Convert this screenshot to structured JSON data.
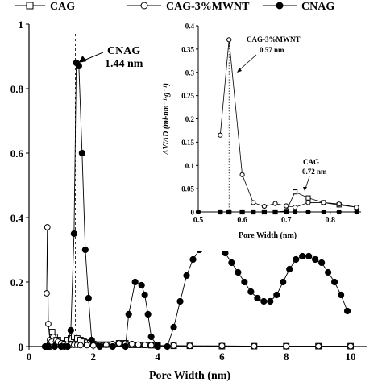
{
  "chart_data": [
    {
      "type": "line",
      "xlabel": "Pore Width (nm)",
      "ylabel": "",
      "xlim": [
        0,
        10.5
      ],
      "ylim": [
        0,
        1.0
      ],
      "xticks": [
        "0",
        "2",
        "4",
        "6",
        "8",
        "10"
      ],
      "yticks": [
        "0",
        "0.2",
        "0.4",
        "0.6",
        "0.8",
        "1"
      ],
      "legend": {
        "placement": "top",
        "entries": [
          "CAG",
          "CAG-3%MWNT",
          "CNAG"
        ]
      },
      "series": [
        {
          "name": "CAG",
          "marker": "open-square",
          "x": [
            0.55,
            0.6,
            0.65,
            0.72,
            0.8,
            0.9,
            1.0,
            1.1,
            1.2,
            1.3,
            1.4,
            1.5,
            1.6,
            1.7,
            1.8,
            1.9,
            2.0,
            2.2,
            2.4,
            2.6,
            2.8,
            3.0,
            3.2,
            3.4,
            3.6,
            3.8,
            4.0,
            4.5,
            5.0,
            6.0,
            7.0,
            8.0,
            9.0,
            10.0
          ],
          "y": [
            0.0,
            0.0,
            0.005,
            0.045,
            0.03,
            0.02,
            0.01,
            0.005,
            0.02,
            0.025,
            0.03,
            0.025,
            0.02,
            0.015,
            0.012,
            0.01,
            0.008,
            0.006,
            0.006,
            0.005,
            0.01,
            0.01,
            0.005,
            0.005,
            0.005,
            0.004,
            0.003,
            0.002,
            0.002,
            0.001,
            0.001,
            0.001,
            0.001,
            0.001
          ]
        },
        {
          "name": "CAG-3%MWNT",
          "marker": "open-circle",
          "x": [
            0.55,
            0.57,
            0.6,
            0.65,
            0.7,
            0.75,
            0.8,
            0.85,
            0.9,
            1.0,
            1.1,
            1.2,
            1.3,
            1.4,
            1.5,
            1.6,
            1.8,
            2.0,
            2.2,
            2.4,
            2.6,
            2.8,
            3.0,
            3.2,
            3.4,
            3.6,
            3.8,
            4.0,
            4.5,
            5.0,
            6.0,
            7.0,
            8.0,
            9.0,
            10.0
          ],
          "y": [
            0.165,
            0.37,
            0.07,
            0.02,
            0.015,
            0.03,
            0.02,
            0.02,
            0.015,
            0.01,
            0.008,
            0.006,
            0.005,
            0.005,
            0.005,
            0.004,
            0.004,
            0.003,
            0.004,
            0.005,
            0.008,
            0.01,
            0.01,
            0.008,
            0.006,
            0.005,
            0.004,
            0.003,
            0.003,
            0.002,
            0.002,
            0.001,
            0.001,
            0.001,
            0.001
          ]
        },
        {
          "name": "CNAG",
          "marker": "filled-circle",
          "x": [
            0.5,
            0.6,
            0.8,
            1.0,
            1.1,
            1.2,
            1.3,
            1.4,
            1.47,
            1.55,
            1.65,
            1.75,
            1.85,
            1.95,
            2.2,
            2.6,
            3.0,
            3.1,
            3.3,
            3.5,
            3.6,
            3.7,
            3.8,
            4.0,
            4.3,
            4.5,
            4.7,
            4.9,
            5.1,
            5.3,
            5.5,
            5.7,
            5.9,
            6.1,
            6.3,
            6.5,
            6.7,
            6.9,
            7.1,
            7.3,
            7.5,
            7.7,
            7.9,
            8.1,
            8.3,
            8.5,
            8.7,
            8.9,
            9.1,
            9.3,
            9.5,
            9.7,
            9.9
          ],
          "y": [
            0.0,
            0.0,
            0.0,
            0.0,
            0.0,
            0.0,
            0.05,
            0.35,
            0.88,
            0.87,
            0.6,
            0.3,
            0.15,
            0.02,
            0.0,
            0.0,
            0.0,
            0.1,
            0.2,
            0.19,
            0.16,
            0.1,
            0.03,
            0.0,
            0.0,
            0.06,
            0.14,
            0.22,
            0.27,
            0.3,
            0.32,
            0.32,
            0.31,
            0.29,
            0.26,
            0.23,
            0.2,
            0.17,
            0.15,
            0.14,
            0.14,
            0.16,
            0.2,
            0.24,
            0.27,
            0.28,
            0.28,
            0.27,
            0.26,
            0.23,
            0.2,
            0.16,
            0.11
          ]
        }
      ],
      "annotations": [
        {
          "text": "CNAG",
          "x": 1.44,
          "y": 0.88
        },
        {
          "text": "1.44 nm",
          "x": 1.44,
          "y": 0.88
        }
      ],
      "reference_line": {
        "x": 1.44,
        "style": "dashed"
      }
    },
    {
      "type": "line",
      "xlabel": "Pore Width (nm)",
      "ylabel": "ΔV/ΔD (ml·nm⁻¹·g⁻¹)",
      "xlim": [
        0.5,
        0.87
      ],
      "ylim": [
        0,
        0.4
      ],
      "xticks": [
        "0.5",
        "0.6",
        "0.7",
        "0.8"
      ],
      "yticks": [
        "0",
        "0.05",
        "0.1",
        "0.15",
        "0.2",
        "0.25",
        "0.3",
        "0.35",
        "0.4"
      ],
      "series": [
        {
          "name": "CAG",
          "marker": "open-square",
          "x": [
            0.55,
            0.57,
            0.6,
            0.625,
            0.65,
            0.675,
            0.7,
            0.72,
            0.75,
            0.785,
            0.82,
            0.86
          ],
          "y": [
            0.0,
            0.0,
            0.0,
            0.0,
            0.0,
            0.0,
            0.002,
            0.043,
            0.03,
            0.02,
            0.015,
            0.01
          ]
        },
        {
          "name": "CAG-3%MWNT",
          "marker": "open-circle",
          "x": [
            0.55,
            0.57,
            0.6,
            0.625,
            0.65,
            0.675,
            0.7,
            0.72,
            0.75,
            0.785,
            0.82,
            0.86
          ],
          "y": [
            0.165,
            0.37,
            0.08,
            0.02,
            0.012,
            0.018,
            0.013,
            0.01,
            0.02,
            0.02,
            0.017,
            0.01
          ]
        },
        {
          "name": "CNAG",
          "marker": "filled-circle",
          "x": [
            0.5,
            0.55,
            0.57,
            0.6,
            0.625,
            0.65,
            0.675,
            0.7,
            0.72,
            0.75,
            0.785,
            0.82,
            0.86
          ],
          "y": [
            0.0,
            0.0,
            0.0,
            0.0,
            0.0,
            0.0,
            0.0,
            0.0,
            0.0,
            0.0,
            0.0,
            0.0,
            0.0
          ]
        }
      ],
      "annotations": [
        {
          "text": "CAG-3%MWNT",
          "x": 0.57,
          "y": 0.37
        },
        {
          "text": "0.57 nm",
          "x": 0.57,
          "y": 0.37
        },
        {
          "text": "CAG",
          "x": 0.72,
          "y": 0.043
        },
        {
          "text": "0.72 nm",
          "x": 0.72,
          "y": 0.043
        }
      ],
      "reference_line": {
        "x": 0.57,
        "style": "dotted"
      }
    }
  ]
}
